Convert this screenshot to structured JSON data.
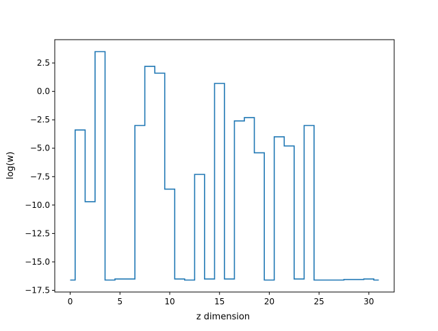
{
  "chart_data": {
    "type": "line",
    "step": true,
    "x": [
      0,
      1,
      2,
      3,
      4,
      5,
      6,
      7,
      8,
      9,
      10,
      11,
      12,
      13,
      14,
      15,
      16,
      17,
      18,
      19,
      20,
      21,
      22,
      23,
      24,
      25,
      26,
      27,
      28,
      29,
      30,
      31
    ],
    "values": [
      -16.6,
      -3.4,
      -9.7,
      3.5,
      -16.6,
      -16.5,
      -16.5,
      -3.0,
      2.2,
      1.6,
      -8.6,
      -16.5,
      -16.6,
      -7.3,
      -16.5,
      0.7,
      -16.5,
      -2.6,
      -2.3,
      -5.4,
      -16.6,
      -4.0,
      -4.8,
      -16.5,
      -3.0,
      -16.6,
      -16.6,
      -16.6,
      -16.55,
      -16.55,
      -16.5,
      -16.6
    ],
    "xlabel": "z dimension",
    "ylabel": "log(w)",
    "xlim": [
      -1.55,
      32.55
    ],
    "ylim": [
      -17.65,
      4.55
    ],
    "xticks": [
      0,
      5,
      10,
      15,
      20,
      25,
      30
    ],
    "xtick_labels": [
      "0",
      "5",
      "10",
      "15",
      "20",
      "25",
      "30"
    ],
    "yticks": [
      2.5,
      0.0,
      -2.5,
      -5.0,
      -7.5,
      -10.0,
      -12.5,
      -15.0,
      -17.5
    ],
    "ytick_labels": [
      "2.5",
      "0.0",
      "−2.5",
      "−5.0",
      "−7.5",
      "−10.0",
      "−12.5",
      "−15.0",
      "−17.5"
    ],
    "grid": false,
    "line_color": "#1f77b4"
  }
}
